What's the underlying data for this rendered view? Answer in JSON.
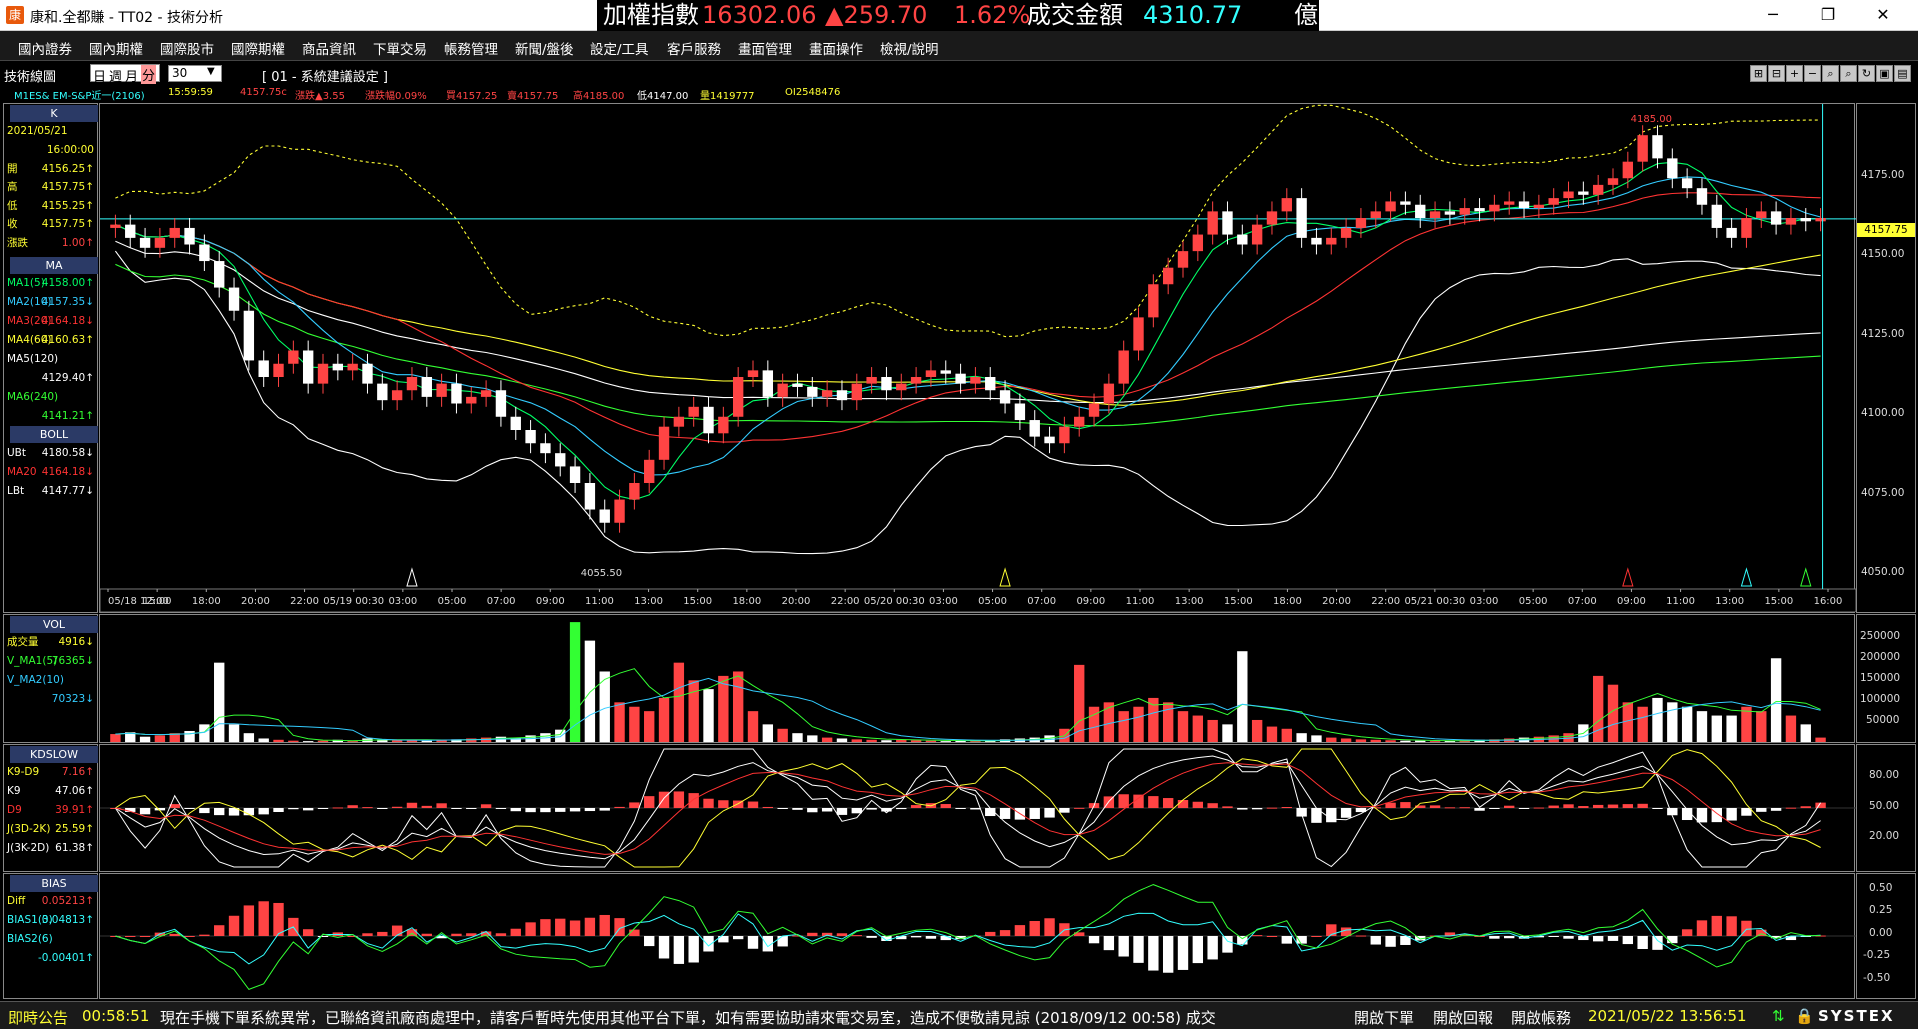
{
  "window": {
    "title": "康和.全都賺 - TT02 - 技術分析",
    "controls": {
      "minimize": "─",
      "maximize": "❐",
      "close": "✕"
    }
  },
  "ticker": {
    "label": "加權指數",
    "value": "16302.06",
    "change": "▲259.70",
    "percent": "1.62%",
    "turnover_label": "成交金額",
    "turnover": "4310.77",
    "unit": "億",
    "up_color": "#ff3333",
    "value_color": "#ff4444",
    "turnover_color": "#33ffff"
  },
  "menu": [
    "國內證券",
    "國內期權",
    "國際股市",
    "國際期權",
    "商品資訊",
    "下單交易",
    "帳務管理",
    "新聞/盤後",
    "設定/工具",
    "客戶服務",
    "畫面管理",
    "畫面操作",
    "檢視/說明"
  ],
  "toolbar": {
    "section_title": "技術線圖",
    "periods": [
      "日",
      "週",
      "月",
      "分"
    ],
    "active_period": "分",
    "interval_value": "30",
    "preset_label": "[ 01 - 系統建議設定 ]",
    "buttons": [
      "zoom-in-icon",
      "zoom-out-icon",
      "plus-icon",
      "minus-icon",
      "search-icon",
      "search-alt-icon",
      "refresh-icon",
      "save-icon",
      "print-icon",
      "settings-icon"
    ]
  },
  "info": {
    "symbol": "M1ES&  EM-S&P近一(2106)",
    "time": "15:59:59",
    "last": "4157.75c",
    "change": "漲跌▲3.55",
    "pct": "漲跌幅0.09%",
    "bid": "買4157.25",
    "ask": "賣4157.75",
    "high": "高4185.00",
    "low": "低4147.00",
    "volume": "量1419777",
    "oi": "OI2548476"
  },
  "k_panel": {
    "header": "K",
    "date": "2021/05/21",
    "time": "16:00:00",
    "rows": [
      {
        "label": "開",
        "value": "4156.25↑"
      },
      {
        "label": "高",
        "value": "4157.75↑"
      },
      {
        "label": "低",
        "value": "4155.25↑"
      },
      {
        "label": "收",
        "value": "4157.75↑"
      },
      {
        "label": "漲跌",
        "value": "1.00↑"
      }
    ]
  },
  "ma_panel": {
    "header": "MA",
    "rows": [
      {
        "label": "MA1(5)",
        "value": "4158.00↑",
        "color": "#00ff66"
      },
      {
        "label": "MA2(10)",
        "value": "4157.35↓",
        "color": "#33ccff"
      },
      {
        "label": "MA3(20)",
        "value": "4164.18↓",
        "color": "#ff3333"
      },
      {
        "label": "MA4(60)",
        "value": "4160.63↑",
        "color": "#ffff33"
      },
      {
        "label": "MA5(120)",
        "value": "4129.40↑",
        "color": "#ffffff"
      },
      {
        "label": "MA6(240)",
        "value": "4141.21↑",
        "color": "#33ff33"
      }
    ]
  },
  "boll_panel": {
    "header": "BOLL",
    "rows": [
      {
        "label": "UBt",
        "value": "4180.58↓",
        "color": "#ffffff"
      },
      {
        "label": "MA20",
        "value": "4164.18↓",
        "color": "#ff3333"
      },
      {
        "label": "LBt",
        "value": "4147.77↓",
        "color": "#ffffff"
      }
    ]
  },
  "vol_panel": {
    "header": "VOL",
    "rows": [
      {
        "label": "成交量",
        "value": "4916↓",
        "color": "#ffff33"
      },
      {
        "label": "V_MA1(5)",
        "value": "76365↓",
        "color": "#33ff33"
      },
      {
        "label": "V_MA2(10)",
        "value": "70323↓",
        "color": "#33ccff"
      }
    ]
  },
  "kd_panel": {
    "header": "KDSLOW",
    "rows": [
      {
        "label": "K9-D9",
        "value": "7.16↑",
        "color": "#ffff33"
      },
      {
        "label": "K9",
        "value": "47.06↑",
        "color": "#ffffff"
      },
      {
        "label": "D9",
        "value": "39.91↑",
        "color": "#ff3333"
      },
      {
        "label": "J(3D-2K)",
        "value": "25.59↑",
        "color": "#ffff33"
      },
      {
        "label": "J(3K-2D)",
        "value": "61.38↑",
        "color": "#ffffff"
      }
    ]
  },
  "bias_panel": {
    "header": "BIAS",
    "rows": [
      {
        "label": "Diff",
        "value": "0.05213↑",
        "color": "#ffff33"
      },
      {
        "label": "BIAS1(3)",
        "value": "0.04813↑",
        "color": "#33ffff"
      },
      {
        "label": "BIAS2(6)",
        "value": "-0.00401↑",
        "color": "#33ffff"
      }
    ]
  },
  "chart_data": {
    "type": "candlestick",
    "price_axis": [
      "4175.00",
      "4150.00",
      "4125.00",
      "4100.00",
      "4075.00",
      "4050.00"
    ],
    "price_range": [
      4046,
      4190
    ],
    "last_price_tag": "4157.75",
    "high_annotation": "4185.00",
    "low_annotation": "4055.50",
    "time_axis": [
      "05/18 12:00",
      "15:00",
      "18:00",
      "20:00",
      "22:00",
      "05/19 00:30",
      "03:00",
      "05:00",
      "07:00",
      "09:00",
      "11:00",
      "13:00",
      "15:00",
      "18:00",
      "20:00",
      "22:00",
      "05/20 00:30",
      "03:00",
      "05:00",
      "07:00",
      "09:00",
      "11:00",
      "13:00",
      "15:00",
      "18:00",
      "20:00",
      "22:00",
      "05/21 00:30",
      "03:00",
      "05:00",
      "07:00",
      "09:00",
      "11:00",
      "13:00",
      "15:00",
      "16:00"
    ],
    "closes": [
      4156,
      4152,
      4149,
      4152,
      4155,
      4150,
      4145,
      4137,
      4130,
      4115,
      4110,
      4114,
      4118,
      4108,
      4114,
      4112,
      4114,
      4108,
      4103,
      4106,
      4110,
      4104,
      4108,
      4102,
      4104,
      4106,
      4098,
      4094,
      4090,
      4087,
      4083,
      4078,
      4070,
      4066,
      4073,
      4078,
      4085,
      4095,
      4098,
      4101,
      4093,
      4098,
      4110,
      4112,
      4104,
      4108,
      4107,
      4104,
      4106,
      4103,
      4108,
      4110,
      4106,
      4108,
      4110,
      4112,
      4111,
      4108,
      4110,
      4106,
      4102,
      4097,
      4092,
      4090,
      4095,
      4098,
      4102,
      4108,
      4118,
      4128,
      4138,
      4143,
      4148,
      4153,
      4160,
      4153,
      4150,
      4156,
      4160,
      4164,
      4152,
      4150,
      4152,
      4155,
      4158,
      4160,
      4163,
      4162,
      4158,
      4160,
      4159,
      4161,
      4160,
      4162,
      4163,
      4161,
      4162,
      4164,
      4166,
      4165,
      4168,
      4170,
      4175,
      4183,
      4176,
      4170,
      4167,
      4162,
      4155,
      4152,
      4158,
      4160,
      4156,
      4158,
      4157,
      4158
    ],
    "volume_axis": [
      "250000",
      "200000",
      "150000",
      "100000",
      "50000"
    ],
    "volumes": [
      18000,
      22000,
      12000,
      15000,
      20000,
      25000,
      40000,
      180000,
      40000,
      20000,
      8000,
      5000,
      3000,
      2000,
      3000,
      5000,
      2000,
      8000,
      6000,
      4000,
      5000,
      3000,
      5000,
      6000,
      8000,
      10000,
      12000,
      10000,
      15000,
      20000,
      28000,
      272000,
      230000,
      160000,
      90000,
      80000,
      70000,
      100000,
      180000,
      140000,
      120000,
      150000,
      160000,
      70000,
      40000,
      30000,
      20000,
      15000,
      10000,
      8000,
      6000,
      5000,
      4000,
      5000,
      4000,
      3000,
      2000,
      3000,
      2000,
      4000,
      6000,
      8000,
      10000,
      15000,
      30000,
      175000,
      80000,
      90000,
      70000,
      80000,
      100000,
      90000,
      70000,
      60000,
      50000,
      40000,
      206000,
      50000,
      35000,
      30000,
      20000,
      15000,
      10000,
      8000,
      6000,
      5000,
      4000,
      3000,
      3000,
      2000,
      3000,
      4000,
      5000,
      6000,
      8000,
      10000,
      12000,
      15000,
      20000,
      40000,
      150000,
      130000,
      90000,
      80000,
      100000,
      90000,
      80000,
      70000,
      60000,
      60000,
      80000,
      70000,
      190000,
      60000,
      40000,
      10000
    ],
    "kd_axis": [
      "80.00",
      "50.00",
      "20.00"
    ],
    "bias_axis": [
      "0.50",
      "0.25",
      "0.00",
      "-0.25",
      "-0.50"
    ]
  },
  "status": {
    "label": "即時公告",
    "time": "00:58:51",
    "message": "現在手機下單系統異常，已聯絡資訊廠商處理中，請客戶暫時先使用其他平台下單，如有需要協助請來電交易室，造成不便敬請見諒 (2018/09/12 00:58) 成交",
    "btn_order": "開啟下單",
    "btn_report": "開啟回報",
    "btn_account": "開啟帳務",
    "datetime": "2021/05/22 13:56:51",
    "brand": "SYSTEX"
  }
}
